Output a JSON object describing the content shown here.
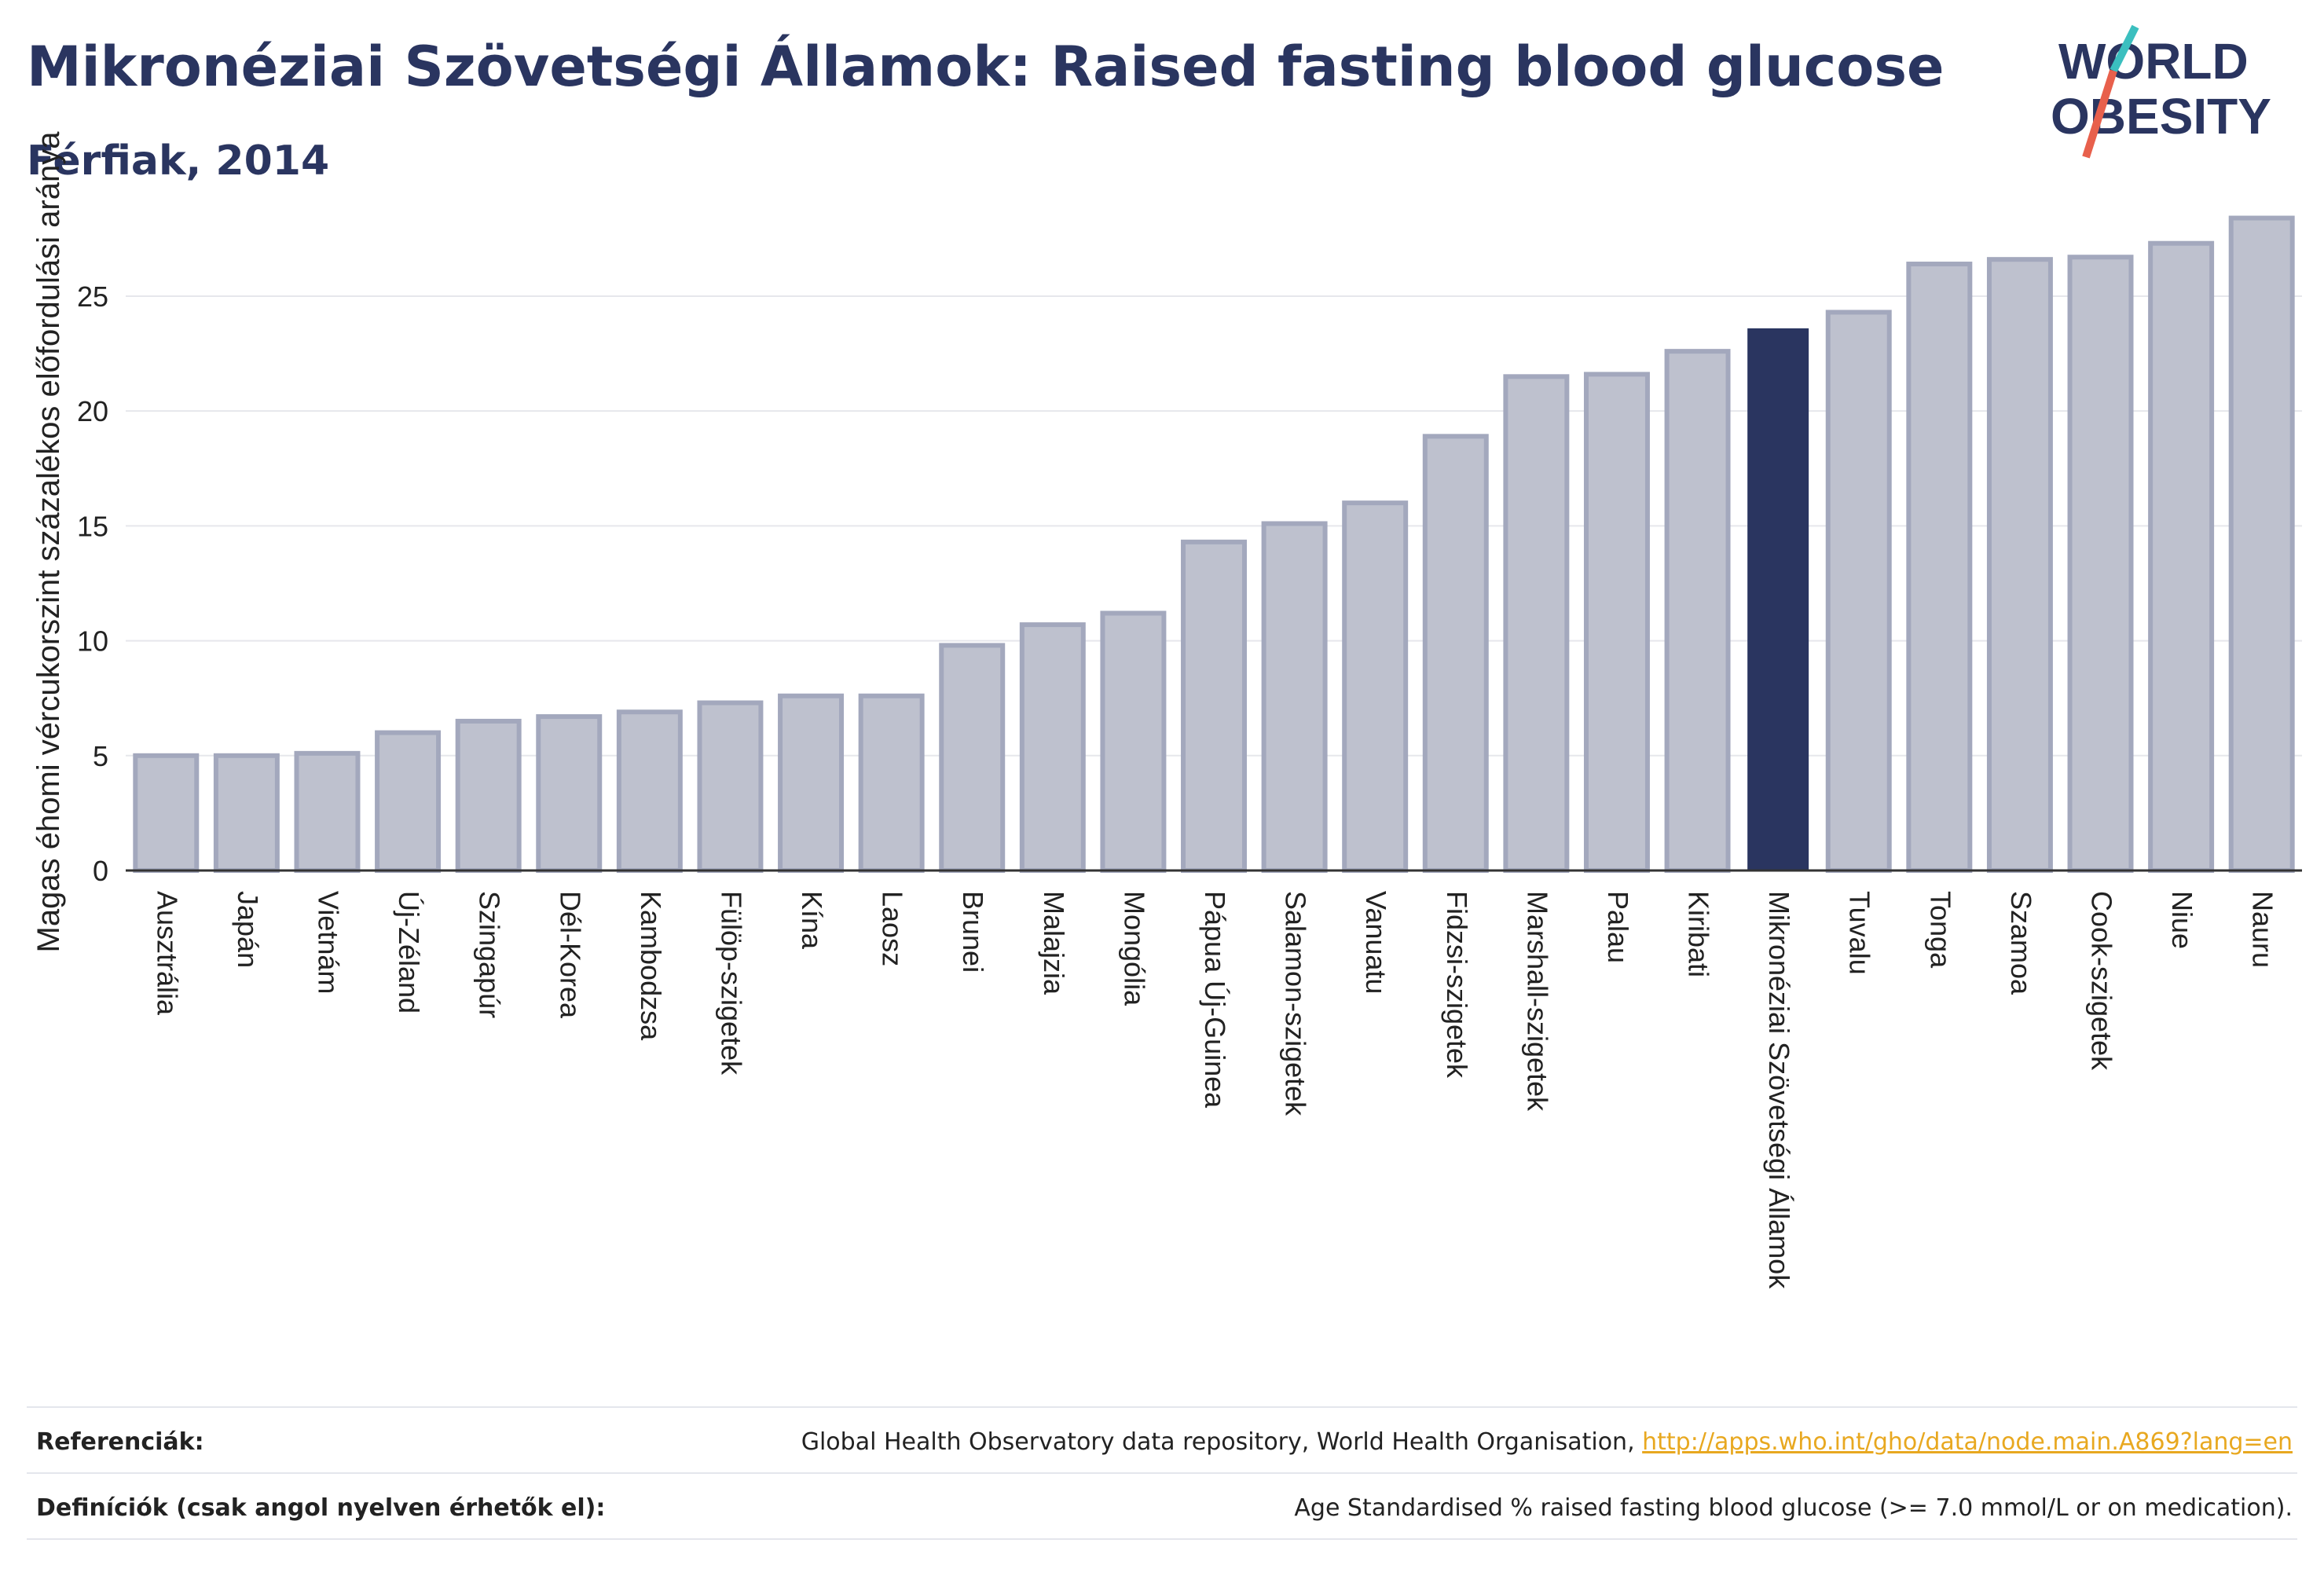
{
  "header": {
    "title": "Mikronéziai Szövetségi Államok: Raised fasting blood glucose",
    "subtitle": "Férfiak, 2014"
  },
  "logo": {
    "line1": "WORLD",
    "line2": "OBESITY",
    "accent_colors": [
      "#3bbfbf",
      "#e8604c"
    ]
  },
  "chart_data": {
    "type": "bar",
    "ylabel": "Magas éhomi vércukorszint százalékos előfordulási aránya",
    "ylim": [
      0,
      29
    ],
    "yticks": [
      0,
      5,
      10,
      15,
      20,
      25
    ],
    "grid": true,
    "highlight": "Mikronéziai Szövetségi Államok",
    "colors": {
      "bar": "#bec1ce",
      "bar_edge": "#a3a8bd",
      "highlight": "#2a3560",
      "grid": "#e6e7ec",
      "axis": "#333333"
    },
    "categories": [
      "Ausztrália",
      "Japán",
      "Vietnám",
      "Új-Zéland",
      "Szingapúr",
      "Dél-Korea",
      "Kambodzsa",
      "Fülöp-szigetek",
      "Kína",
      "Laosz",
      "Brunei",
      "Malajzia",
      "Mongólia",
      "Pápua Új-Guinea",
      "Salamon-szigetek",
      "Vanuatu",
      "Fidzsi-szigetek",
      "Marshall-szigetek",
      "Palau",
      "Kiribati",
      "Mikronéziai Szövetségi Államok",
      "Tuvalu",
      "Tonga",
      "Szamoa",
      "Cook-szigetek",
      "Niue",
      "Nauru"
    ],
    "values": [
      5.0,
      5.0,
      5.1,
      6.0,
      6.5,
      6.7,
      6.9,
      7.3,
      7.6,
      7.6,
      9.8,
      10.7,
      11.2,
      14.3,
      15.1,
      16.0,
      18.9,
      21.5,
      21.6,
      22.6,
      23.6,
      24.3,
      26.4,
      26.6,
      26.7,
      27.3,
      28.4
    ]
  },
  "footer": {
    "references_label": "Referenciák:",
    "references_text": "Global Health Observatory data repository, World Health Organisation, ",
    "references_link": "http://apps.who.int/gho/data/node.main.A869?lang=en",
    "definitions_label": "Definíciók (csak angol nyelven érhetők el):",
    "definitions_text": "Age Standardised % raised fasting blood glucose (>= 7.0 mmol/L or on medication)."
  }
}
